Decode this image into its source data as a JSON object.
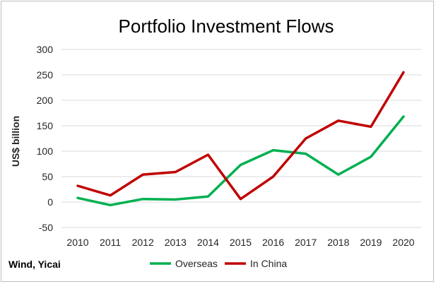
{
  "chart_data": {
    "type": "line",
    "title": "Portfolio Investment Flows",
    "ylabel": "US$ billion",
    "xlabel": "",
    "x": [
      "2010",
      "2011",
      "2012",
      "2013",
      "2014",
      "2015",
      "2016",
      "2017",
      "2018",
      "2019",
      "2020"
    ],
    "ylim": [
      -50,
      300
    ],
    "yticks": [
      -50,
      0,
      50,
      100,
      150,
      200,
      250,
      300
    ],
    "grid": true,
    "legend_position": "bottom",
    "series": [
      {
        "name": "Overseas",
        "color": "#00b050",
        "values": [
          8,
          -6,
          6,
          5,
          11,
          73,
          102,
          95,
          54,
          89,
          168
        ]
      },
      {
        "name": "In China",
        "color": "#c00000",
        "values": [
          32,
          13,
          54,
          59,
          93,
          6,
          50,
          125,
          160,
          148,
          255
        ]
      }
    ]
  },
  "source": "Wind, Yicai"
}
